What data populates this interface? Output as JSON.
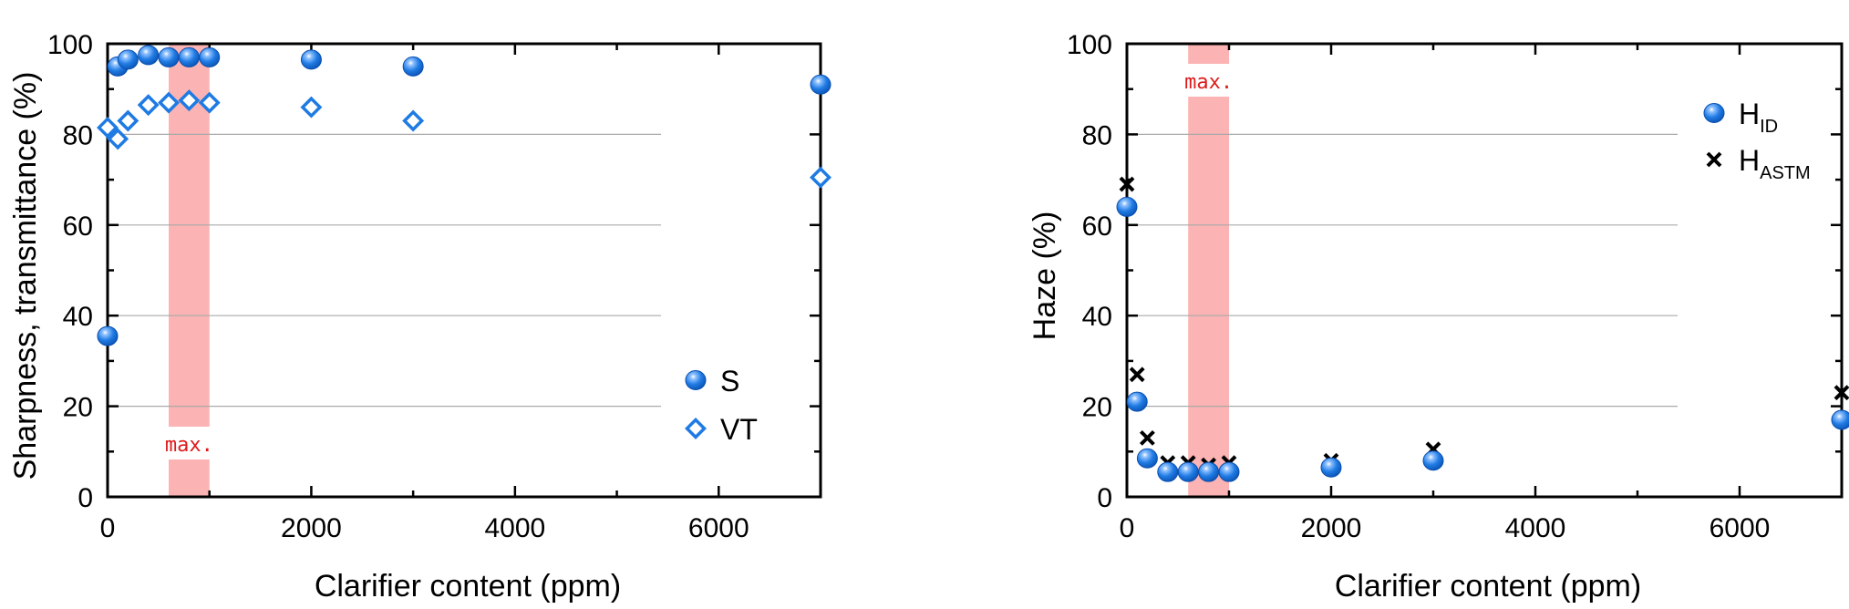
{
  "colors": {
    "marker_blue": "#1f7be3",
    "marker_blue_dark": "#0a4fb0",
    "band_fill": "#fbb3b3",
    "max_label": "#dd1b1b",
    "grid": "#aaaaaa",
    "axis": "#000000"
  },
  "chart_data": [
    {
      "type": "scatter",
      "title": "",
      "xlabel": "Clarifier content (ppm)",
      "ylabel": "Sharpness, transmittance (%)",
      "xlim": [
        0,
        7000
      ],
      "ylim": [
        0,
        100
      ],
      "xticks": [
        0,
        2000,
        4000,
        6000
      ],
      "yticks": [
        0,
        20,
        40,
        60,
        80,
        100
      ],
      "grid": "horizontal",
      "legend_position": "lower-right",
      "highlight_band": {
        "x_range": [
          600,
          1000
        ],
        "label": "max.",
        "label_position": "bottom"
      },
      "series": [
        {
          "name": "S",
          "marker": "filled-circle",
          "x": [
            0,
            100,
            200,
            400,
            600,
            800,
            1000,
            2000,
            3000,
            7000
          ],
          "y": [
            35.5,
            95,
            96.5,
            97.5,
            97,
            97,
            97,
            96.5,
            95,
            91
          ]
        },
        {
          "name": "VT",
          "marker": "open-diamond",
          "x": [
            0,
            100,
            200,
            400,
            600,
            800,
            1000,
            2000,
            3000,
            7000
          ],
          "y": [
            81.5,
            79,
            83,
            86.5,
            87,
            87.5,
            87,
            86,
            83,
            70.5
          ]
        }
      ]
    },
    {
      "type": "scatter",
      "title": "",
      "xlabel": "Clarifier content (ppm)",
      "ylabel": "Haze (%)",
      "xlim": [
        0,
        7000
      ],
      "ylim": [
        0,
        100
      ],
      "xticks": [
        0,
        2000,
        4000,
        6000
      ],
      "yticks": [
        0,
        20,
        40,
        60,
        80,
        100
      ],
      "grid": "horizontal",
      "legend_position": "upper-right",
      "highlight_band": {
        "x_range": [
          600,
          1000
        ],
        "label": "max.",
        "label_position": "top"
      },
      "series": [
        {
          "name": "H",
          "name_subscript": "ID",
          "marker": "filled-circle",
          "x": [
            0,
            100,
            200,
            400,
            600,
            800,
            1000,
            2000,
            3000,
            7000
          ],
          "y": [
            64,
            21,
            8.5,
            5.5,
            5.5,
            5.5,
            5.5,
            6.5,
            8,
            17
          ]
        },
        {
          "name": "H",
          "name_subscript": "ASTM",
          "marker": "x-cross",
          "x": [
            0,
            100,
            200,
            400,
            600,
            800,
            1000,
            2000,
            3000,
            7000
          ],
          "y": [
            69,
            27,
            13,
            7.5,
            7.5,
            7,
            7.5,
            8,
            10.5,
            23
          ]
        }
      ]
    }
  ]
}
